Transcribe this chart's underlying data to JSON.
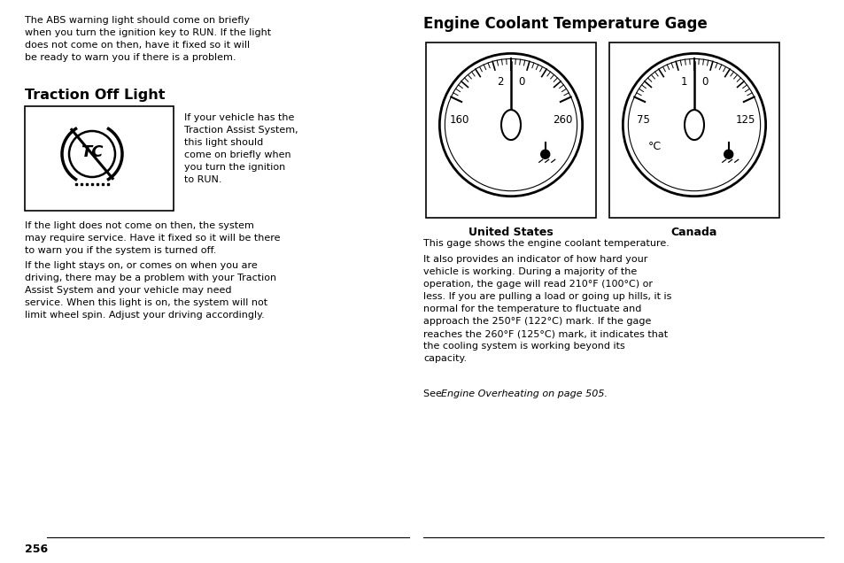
{
  "bg_color": "#ffffff",
  "text_color": "#000000",
  "page_number": "256",
  "top_text": "The ABS warning light should come on briefly\nwhen you turn the ignition key to RUN. If the light\ndoes not come on then, have it fixed so it will\nbe ready to warn you if there is a problem.",
  "section1_title": "Traction Off Light",
  "traction_text": "If your vehicle has the\nTraction Assist System,\nthis light should\ncome on briefly when\nyou turn the ignition\nto RUN.",
  "traction_para1": "If the light does not come on then, the system\nmay require service. Have it fixed so it will be there\nto warn you if the system is turned off.",
  "traction_para2": "If the light stays on, or comes on when you are\ndriving, there may be a problem with your Traction\nAssist System and your vehicle may need\nservice. When this light is on, the system will not\nlimit wheel spin. Adjust your driving accordingly.",
  "section2_title": "Engine Coolant Temperature Gage",
  "gage_label1": "United States",
  "gage_label2": "Canada",
  "gage2_unit": "°C",
  "body_text1": "This gage shows the engine coolant temperature.",
  "body_text2": "It also provides an indicator of how hard your\nvehicle is working. During a majority of the\noperation, the gage will read 210°F (100°C) or\nless. If you are pulling a load or going up hills, it is\nnormal for the temperature to fluctuate and\napproach the 250°F (122°C) mark. If the gage\nreaches the 260°F (125°C) mark, it indicates that\nthe cooling system is working beyond its\ncapacity.",
  "body_text3_pre": "See ",
  "body_text3_italic": "Engine Overheating on page 505."
}
